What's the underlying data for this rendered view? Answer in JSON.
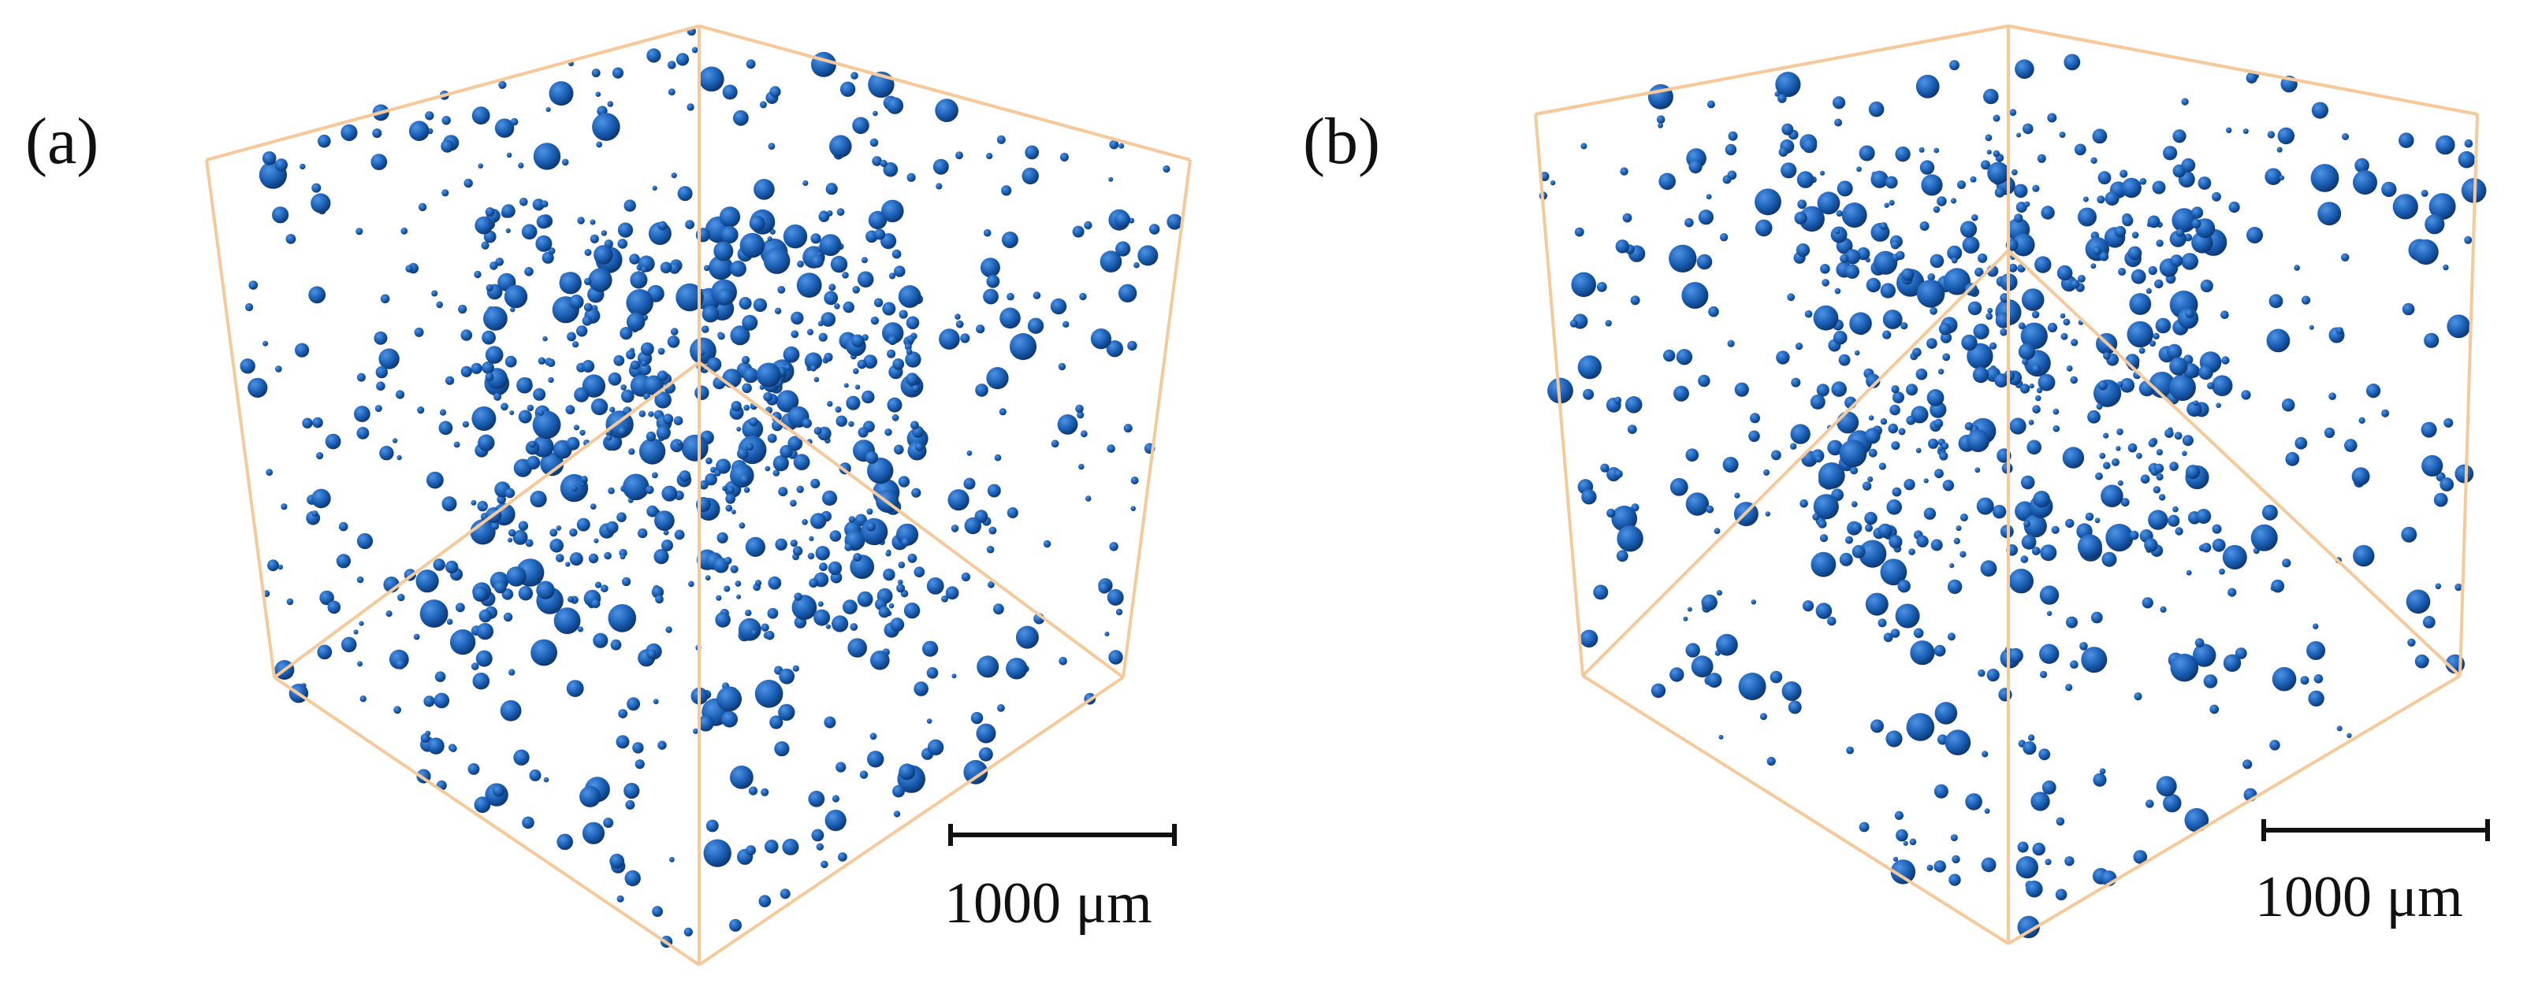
{
  "figure": {
    "panels": [
      {
        "label": "(a)",
        "scale_bar_label": "1000 μm"
      },
      {
        "label": "(b)",
        "scale_bar_label": "1000 μm"
      }
    ],
    "colors": {
      "box_edges": "#f5c99a",
      "pores": "#1a5fb4",
      "pore_highlight": "#4f93e6",
      "pore_shadow": "#0b2f66",
      "scale_bar": "#111111",
      "background": "#ffffff"
    }
  }
}
